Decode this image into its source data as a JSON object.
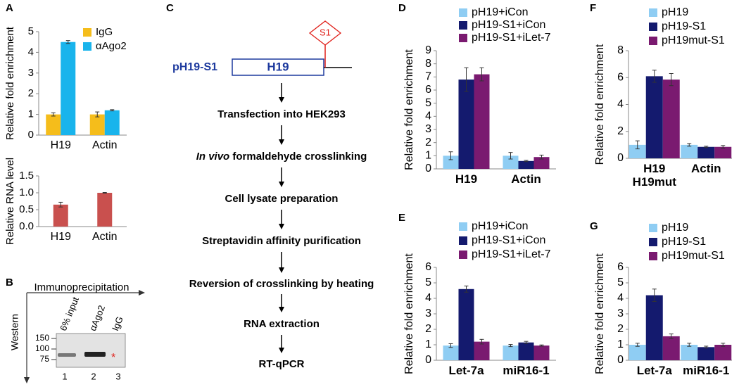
{
  "panels": [
    "A",
    "B",
    "C",
    "D",
    "E",
    "F",
    "G"
  ],
  "chart_data": [
    {
      "type": "bar",
      "ylabel": "Relative fold enrichment",
      "categories": [
        "H19",
        "Actin"
      ],
      "series": [
        {
          "name": "IgG",
          "color": "#f5bd1b",
          "values": [
            1.0,
            1.0
          ],
          "errors": [
            0.08,
            0.12
          ]
        },
        {
          "name": "αAgo2",
          "color": "#19b4ec",
          "values": [
            4.5,
            1.2
          ],
          "errors": [
            0.07,
            0.03
          ]
        }
      ],
      "ylim": [
        0,
        5
      ],
      "yticks": [
        0,
        1,
        2,
        3,
        4,
        5
      ]
    },
    {
      "type": "bar",
      "ylabel": "Relative RNA level",
      "categories": [
        "H19",
        "Actin"
      ],
      "values": [
        0.65,
        1.0
      ],
      "errors": [
        0.07,
        0.01
      ],
      "color": "#c9504e",
      "ylim": [
        0,
        1.5
      ],
      "yticks": [
        {
          "value": 0,
          "label": "0.0"
        },
        0.5,
        {
          "value": 1,
          "label": "1.0"
        },
        1.5
      ]
    },
    {
      "type": "bar",
      "ylabel": "Relative fold enrichment",
      "categories": [
        "H19",
        "Actin"
      ],
      "series": [
        {
          "name": "pH19+iCon",
          "color": "#8fcdf3",
          "values": [
            1.0,
            1.0
          ],
          "errors": [
            0.3,
            0.25
          ]
        },
        {
          "name": "pH19-S1+iCon",
          "color": "#141a6e",
          "values": [
            6.8,
            0.6
          ],
          "errors": [
            0.9,
            0.05
          ]
        },
        {
          "name": "pH19-S1+iLet-7",
          "color": "#7a1a70",
          "values": [
            7.2,
            0.9
          ],
          "errors": [
            0.5,
            0.15
          ]
        }
      ],
      "ylim": [
        0,
        9
      ],
      "yticks": [
        0,
        1,
        2,
        3,
        4,
        5,
        6,
        7,
        8,
        9
      ]
    },
    {
      "type": "bar",
      "ylabel": "Relative fold enrichment",
      "categories": [
        "Let-7a",
        "miR16-1"
      ],
      "series": [
        {
          "name": "pH19+iCon",
          "color": "#8fcdf3",
          "values": [
            0.95,
            0.95
          ],
          "errors": [
            0.12,
            0.07
          ]
        },
        {
          "name": "pH19-S1+iCon",
          "color": "#141a6e",
          "values": [
            4.6,
            1.15
          ],
          "errors": [
            0.2,
            0.07
          ]
        },
        {
          "name": "pH19-S1+iLet-7",
          "color": "#7a1a70",
          "values": [
            1.2,
            0.95
          ],
          "errors": [
            0.15,
            0.04
          ]
        }
      ],
      "ylim": [
        0,
        6
      ],
      "yticks": [
        0,
        1,
        2,
        3,
        4,
        5,
        6
      ]
    },
    {
      "type": "bar",
      "ylabel": "Relative fold enrichment",
      "categories": [
        "H19\nH19mut",
        "Actin"
      ],
      "series": [
        {
          "name": "pH19",
          "color": "#8fcdf3",
          "values": [
            1.0,
            1.0
          ],
          "errors": [
            0.3,
            0.1
          ]
        },
        {
          "name": "pH19-S1",
          "color": "#141a6e",
          "values": [
            6.1,
            0.85
          ],
          "errors": [
            0.45,
            0.05
          ]
        },
        {
          "name": "pH19mut-S1",
          "color": "#7a1a70",
          "values": [
            5.85,
            0.85
          ],
          "errors": [
            0.45,
            0.1
          ]
        }
      ],
      "ylim": [
        0,
        8
      ],
      "yticks": [
        0,
        2,
        4,
        6,
        8
      ]
    },
    {
      "type": "bar",
      "ylabel": "Relative fold enrichment",
      "categories": [
        "Let-7a",
        "miR16-1"
      ],
      "series": [
        {
          "name": "pH19",
          "color": "#8fcdf3",
          "values": [
            1.0,
            1.0
          ],
          "errors": [
            0.1,
            0.1
          ]
        },
        {
          "name": "pH19-S1",
          "color": "#141a6e",
          "values": [
            4.2,
            0.85
          ],
          "errors": [
            0.4,
            0.06
          ]
        },
        {
          "name": "pH19mut-S1",
          "color": "#7a1a70",
          "values": [
            1.55,
            1.0
          ],
          "errors": [
            0.15,
            0.1
          ]
        }
      ],
      "ylim": [
        0,
        6
      ],
      "yticks": [
        0,
        1,
        2,
        3,
        4,
        5,
        6
      ]
    }
  ],
  "western": {
    "title": "Immunoprecipitation",
    "ylabel": "Western",
    "lanes": [
      "6% input",
      "αAgo2",
      "IgG"
    ],
    "lane_numbers": [
      "1",
      "2",
      "3"
    ],
    "markers": [
      "150",
      "100",
      "75"
    ],
    "asterisk": "*"
  },
  "flowchart": {
    "construct": "pH19-S1",
    "gene": "H19",
    "site": "S1",
    "steps": [
      "Transfection into HEK293",
      [
        "In vivo",
        " formaldehyde crosslinking"
      ],
      "Cell lysate preparation",
      "Streptavidin affinity purification",
      "Reversion of crosslinking by heating",
      "RNA extraction",
      "RT-qPCR"
    ]
  }
}
